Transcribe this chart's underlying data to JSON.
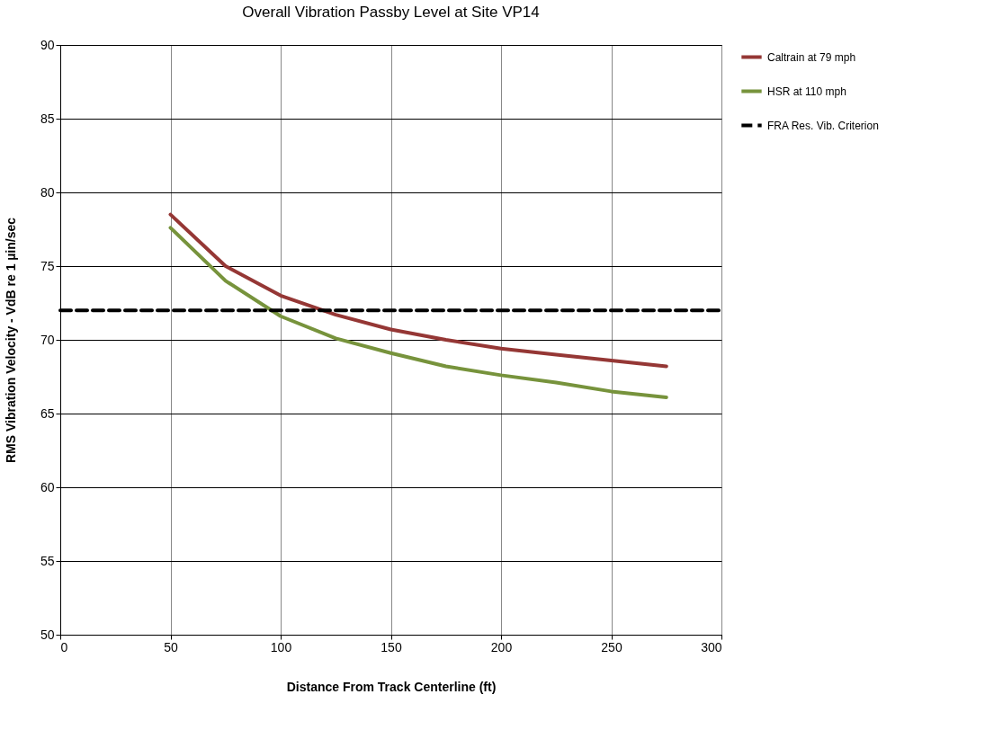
{
  "chart_data": {
    "type": "line",
    "title": "Overall Vibration Passby Level at Site VP14",
    "xlabel": "Distance From Track Centerline (ft)",
    "ylabel": "RMS Vibration Velocity - VdB re 1 µin/sec",
    "x": [
      50,
      75,
      100,
      125,
      150,
      175,
      200,
      225,
      250,
      275
    ],
    "series": [
      {
        "name": "Caltrain at 79 mph",
        "color": "#953735",
        "values": [
          78.5,
          75.0,
          73.0,
          71.7,
          70.7,
          70.0,
          69.4,
          69.0,
          68.6,
          68.2
        ]
      },
      {
        "name": "HSR at 110 mph",
        "color": "#77933c",
        "values": [
          77.6,
          74.0,
          71.6,
          70.1,
          69.1,
          68.2,
          67.6,
          67.1,
          66.5,
          66.1
        ]
      }
    ],
    "ref_lines": [
      {
        "axis": "y",
        "value": 72,
        "label": "FRA Res. Vib. Criterion",
        "color": "#000000",
        "line_style": "dashed"
      }
    ],
    "xlim": [
      0,
      300
    ],
    "xticks": [
      0,
      50,
      100,
      150,
      200,
      250,
      300
    ],
    "ylim": [
      50,
      90
    ],
    "yticks": [
      50,
      55,
      60,
      65,
      70,
      75,
      80,
      85,
      90
    ],
    "grid": true,
    "legend": "right",
    "marker": "none",
    "line_style": "solid"
  }
}
